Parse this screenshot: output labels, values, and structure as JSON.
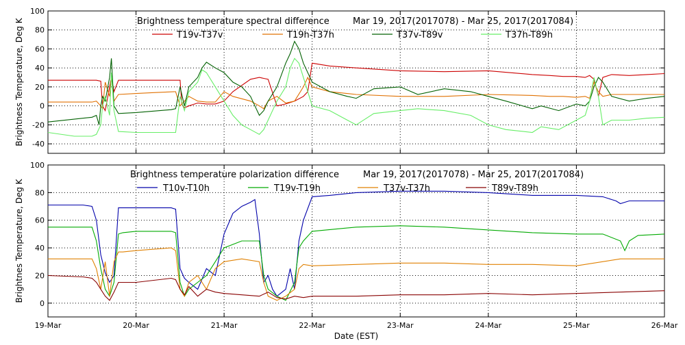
{
  "x_axis": {
    "label": "Date (EST)",
    "ticks": [
      "19-Mar",
      "20-Mar",
      "21-Mar",
      "22-Mar",
      "23-Mar",
      "24-Mar",
      "25-Mar",
      "26-Mar"
    ],
    "xlim": [
      0,
      7
    ]
  },
  "chart_data": [
    {
      "type": "line",
      "title": "Brightness temperature spectral difference",
      "date_range": "Mar 19, 2017(2017078) - Mar 25, 2017(2017084)",
      "xlabel": "",
      "ylabel": "Brightness Temperature, Deg K",
      "ylim": [
        -50,
        100
      ],
      "yticks": [
        -40,
        -20,
        0,
        20,
        40,
        60,
        80,
        100
      ],
      "grid": true,
      "series": [
        {
          "name": "T19v-T37v",
          "color": "#cc0000",
          "x": [
            0,
            0.55,
            0.6,
            0.62,
            0.65,
            0.7,
            0.72,
            0.75,
            0.8,
            1.0,
            1.4,
            1.5,
            1.52,
            1.55,
            1.6,
            1.7,
            1.8,
            1.9,
            2.0,
            2.1,
            2.3,
            2.4,
            2.45,
            2.5,
            2.6,
            2.7,
            2.8,
            2.9,
            2.95,
            3.0,
            3.2,
            3.5,
            4.0,
            4.5,
            5.0,
            5.5,
            5.7,
            5.85,
            6.0,
            6.1,
            6.15,
            6.2,
            6.25,
            6.3,
            6.4,
            6.6,
            6.8,
            7.0
          ],
          "values": [
            27,
            27,
            26,
            0,
            -5,
            20,
            30,
            15,
            27,
            27,
            27,
            27,
            2,
            -2,
            0,
            3,
            2,
            2,
            5,
            15,
            28,
            30,
            29,
            28,
            0,
            2,
            5,
            10,
            15,
            45,
            42,
            40,
            37,
            36,
            37,
            33,
            32,
            31,
            31,
            30,
            32,
            28,
            10,
            30,
            33,
            32,
            33,
            34
          ]
        },
        {
          "name": "T19h-T37h",
          "color": "#e07000",
          "x": [
            0,
            0.5,
            0.55,
            0.6,
            0.62,
            0.65,
            0.7,
            0.72,
            0.75,
            0.8,
            1.0,
            1.2,
            1.45,
            1.5,
            1.55,
            1.6,
            1.7,
            1.8,
            1.9,
            2.0,
            2.1,
            2.3,
            2.4,
            2.45,
            2.5,
            2.6,
            2.7,
            2.8,
            2.9,
            2.95,
            3.0,
            3.2,
            3.5,
            4.0,
            4.5,
            5.0,
            5.5,
            5.7,
            5.85,
            6.0,
            6.1,
            6.15,
            6.2,
            6.25,
            6.3,
            6.4,
            6.6,
            6.8,
            7.0
          ],
          "values": [
            4,
            4,
            5,
            0,
            -3,
            25,
            10,
            30,
            5,
            12,
            13,
            14,
            15,
            0,
            5,
            10,
            5,
            4,
            4,
            15,
            10,
            5,
            0,
            -3,
            5,
            10,
            3,
            5,
            20,
            30,
            20,
            15,
            12,
            10,
            10,
            12,
            11,
            10,
            10,
            9,
            10,
            8,
            25,
            15,
            10,
            12,
            12,
            12,
            12
          ]
        },
        {
          "name": "T37v-T89v",
          "color": "#006000",
          "x": [
            0,
            0.5,
            0.55,
            0.58,
            0.6,
            0.62,
            0.65,
            0.7,
            0.72,
            0.75,
            0.8,
            1.0,
            1.4,
            1.45,
            1.5,
            1.55,
            1.6,
            1.7,
            1.75,
            1.8,
            1.9,
            2.0,
            2.1,
            2.2,
            2.3,
            2.35,
            2.4,
            2.45,
            2.5,
            2.6,
            2.7,
            2.75,
            2.8,
            2.85,
            2.9,
            3.0,
            3.2,
            3.4,
            3.5,
            3.7,
            4.0,
            4.2,
            4.5,
            4.8,
            5.0,
            5.2,
            5.5,
            5.6,
            5.8,
            6.0,
            6.1,
            6.15,
            6.2,
            6.25,
            6.3,
            6.4,
            6.6,
            6.8,
            7.0
          ],
          "values": [
            -17,
            -12,
            -10,
            -20,
            0,
            10,
            5,
            30,
            50,
            0,
            -8,
            -7,
            -4,
            -3,
            20,
            0,
            20,
            30,
            40,
            46,
            40,
            35,
            25,
            20,
            10,
            0,
            -10,
            -5,
            5,
            20,
            45,
            55,
            68,
            60,
            45,
            25,
            15,
            10,
            8,
            18,
            20,
            12,
            18,
            15,
            10,
            5,
            -3,
            0,
            -5,
            2,
            0,
            5,
            20,
            30,
            25,
            10,
            5,
            8,
            10
          ]
        },
        {
          "name": "T37h-T89h",
          "color": "#66ee66",
          "x": [
            0,
            0.3,
            0.5,
            0.55,
            0.6,
            0.62,
            0.65,
            0.7,
            0.72,
            0.75,
            0.8,
            1.0,
            1.4,
            1.45,
            1.5,
            1.55,
            1.6,
            1.7,
            1.75,
            1.8,
            1.9,
            2.0,
            2.1,
            2.2,
            2.3,
            2.4,
            2.45,
            2.5,
            2.6,
            2.7,
            2.75,
            2.8,
            2.85,
            2.9,
            3.0,
            3.2,
            3.4,
            3.5,
            3.7,
            4.0,
            4.2,
            4.5,
            4.8,
            5.0,
            5.2,
            5.5,
            5.6,
            5.8,
            6.0,
            6.1,
            6.15,
            6.2,
            6.25,
            6.3,
            6.4,
            6.6,
            6.8,
            7.0
          ],
          "values": [
            -28,
            -32,
            -32,
            -30,
            -20,
            0,
            10,
            -10,
            35,
            -5,
            -27,
            -28,
            -28,
            -28,
            10,
            -5,
            15,
            25,
            38,
            35,
            20,
            5,
            -10,
            -20,
            -25,
            -30,
            -25,
            -15,
            5,
            20,
            40,
            50,
            45,
            30,
            0,
            -5,
            -15,
            -20,
            -8,
            -5,
            -3,
            -5,
            -10,
            -20,
            -25,
            -28,
            -22,
            -25,
            -15,
            -10,
            5,
            30,
            10,
            -20,
            -15,
            -15,
            -13,
            -12
          ]
        }
      ]
    },
    {
      "type": "line",
      "title": "Brightness temperature polarization difference",
      "date_range": "Mar 19, 2017(2017078) - Mar 25, 2017(2017084)",
      "xlabel": "Date (EST)",
      "ylabel": "Brightnes Temperature, Deg K",
      "ylim": [
        -10,
        100
      ],
      "yticks": [
        0,
        20,
        40,
        60,
        80,
        100
      ],
      "grid": true,
      "series": [
        {
          "name": "T10v-T10h",
          "color": "#0000aa",
          "x": [
            0,
            0.4,
            0.5,
            0.55,
            0.6,
            0.65,
            0.7,
            0.75,
            0.8,
            0.85,
            1.0,
            1.4,
            1.45,
            1.5,
            1.55,
            1.6,
            1.7,
            1.8,
            1.9,
            2.0,
            2.1,
            2.2,
            2.3,
            2.35,
            2.4,
            2.45,
            2.5,
            2.55,
            2.6,
            2.7,
            2.75,
            2.8,
            2.85,
            2.9,
            3.0,
            3.2,
            3.5,
            4.0,
            4.5,
            5.0,
            5.5,
            5.8,
            6.0,
            6.3,
            6.4,
            6.45,
            6.5,
            6.55,
            6.6,
            7.0
          ],
          "values": [
            71,
            71,
            70,
            60,
            35,
            22,
            15,
            20,
            69,
            69,
            69,
            69,
            68,
            25,
            18,
            15,
            10,
            25,
            20,
            50,
            65,
            70,
            73,
            75,
            50,
            15,
            20,
            10,
            5,
            10,
            25,
            10,
            45,
            60,
            77,
            78,
            80,
            81,
            81,
            80,
            78,
            78,
            78,
            77,
            75,
            74,
            72,
            73,
            74,
            74
          ]
        },
        {
          "name": "T19v-T19h",
          "color": "#00aa00",
          "x": [
            0,
            0.4,
            0.5,
            0.55,
            0.6,
            0.65,
            0.7,
            0.75,
            0.8,
            0.85,
            1.0,
            1.4,
            1.45,
            1.5,
            1.55,
            1.6,
            1.7,
            1.8,
            1.9,
            2.0,
            2.2,
            2.4,
            2.45,
            2.5,
            2.6,
            2.7,
            2.8,
            2.85,
            2.9,
            3.0,
            3.5,
            4.0,
            4.5,
            5.0,
            5.5,
            6.0,
            6.3,
            6.5,
            6.55,
            6.6,
            6.7,
            7.0
          ],
          "values": [
            55,
            55,
            55,
            45,
            25,
            10,
            5,
            15,
            50,
            51,
            52,
            52,
            51,
            15,
            5,
            10,
            15,
            20,
            30,
            40,
            45,
            45,
            20,
            10,
            5,
            2,
            15,
            40,
            45,
            52,
            55,
            56,
            55,
            53,
            51,
            50,
            50,
            45,
            38,
            45,
            49,
            50
          ]
        },
        {
          "name": "T37v-T37h",
          "color": "#e08000",
          "x": [
            0,
            0.4,
            0.5,
            0.55,
            0.6,
            0.65,
            0.7,
            0.75,
            0.8,
            0.85,
            1.0,
            1.4,
            1.45,
            1.5,
            1.55,
            1.6,
            1.7,
            1.8,
            1.9,
            2.0,
            2.2,
            2.4,
            2.45,
            2.5,
            2.6,
            2.7,
            2.8,
            2.85,
            2.9,
            3.0,
            3.5,
            4.0,
            4.5,
            5.0,
            5.5,
            6.0,
            6.5,
            7.0
          ],
          "values": [
            32,
            32,
            32,
            25,
            10,
            30,
            5,
            30,
            37,
            37,
            38,
            40,
            38,
            10,
            5,
            15,
            20,
            10,
            25,
            30,
            32,
            30,
            15,
            5,
            2,
            5,
            10,
            25,
            28,
            27,
            28,
            29,
            29,
            28,
            28,
            27,
            32,
            32
          ]
        },
        {
          "name": "T89v-T89h",
          "color": "#880000",
          "x": [
            0,
            0.4,
            0.5,
            0.55,
            0.6,
            0.65,
            0.7,
            0.75,
            0.8,
            1.0,
            1.4,
            1.45,
            1.5,
            1.55,
            1.6,
            1.7,
            1.8,
            1.9,
            2.0,
            2.2,
            2.4,
            2.5,
            2.6,
            2.7,
            2.8,
            2.9,
            3.0,
            3.5,
            4.0,
            4.5,
            5.0,
            5.5,
            6.0,
            6.5,
            7.0
          ],
          "values": [
            20,
            19,
            18,
            15,
            10,
            5,
            2,
            8,
            15,
            15,
            18,
            17,
            10,
            6,
            12,
            5,
            10,
            8,
            7,
            6,
            5,
            8,
            4,
            3,
            5,
            4,
            5,
            5,
            6,
            6,
            7,
            6,
            7,
            8,
            9
          ]
        }
      ]
    }
  ]
}
